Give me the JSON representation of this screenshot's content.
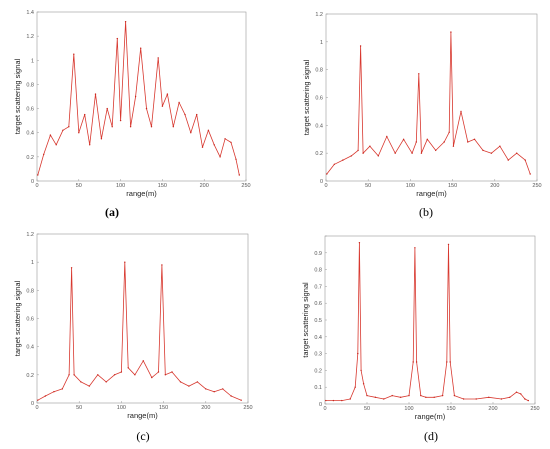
{
  "chart_data": [
    {
      "type": "line",
      "panel": "(a)",
      "xlabel": "range(m)",
      "ylabel": "target scattering signal",
      "xlim": [
        0,
        250
      ],
      "ylim": [
        0,
        1.4
      ],
      "xticks": [
        0,
        50,
        100,
        150,
        200,
        250
      ],
      "yticks": [
        0,
        0.2,
        0.4,
        0.6,
        0.8,
        1,
        1.2,
        1.4
      ],
      "ytick_labels": [
        "0",
        "0.2",
        "0.4",
        "0.6",
        "0.8",
        "1",
        "1.2",
        "1.4"
      ],
      "series": [
        {
          "x": [
            1,
            8,
            16,
            23,
            31,
            38,
            44,
            50,
            57,
            63,
            70,
            77,
            84,
            90,
            96,
            100,
            106,
            112,
            118,
            124,
            131,
            137,
            145,
            150,
            156,
            163,
            170,
            177,
            184,
            191,
            198,
            205,
            212,
            219,
            225,
            232,
            238,
            242
          ],
          "y": [
            0.05,
            0.22,
            0.38,
            0.3,
            0.42,
            0.45,
            1.05,
            0.4,
            0.55,
            0.3,
            0.72,
            0.35,
            0.6,
            0.45,
            1.18,
            0.5,
            1.32,
            0.45,
            0.7,
            1.1,
            0.6,
            0.45,
            1.02,
            0.62,
            0.72,
            0.45,
            0.65,
            0.55,
            0.4,
            0.55,
            0.28,
            0.42,
            0.3,
            0.2,
            0.35,
            0.32,
            0.18,
            0.05
          ]
        }
      ]
    },
    {
      "type": "line",
      "panel": "(b)",
      "xlabel": "range(m)",
      "ylabel": "target scattering signal",
      "xlim": [
        0,
        250
      ],
      "ylim": [
        0,
        1.2
      ],
      "xticks": [
        0,
        50,
        100,
        150,
        200,
        250
      ],
      "yticks": [
        0,
        0.2,
        0.4,
        0.6,
        0.8,
        1,
        1.2
      ],
      "ytick_labels": [
        "0",
        "0.2",
        "0.4",
        "0.6",
        "0.8",
        "1",
        "1.2"
      ],
      "series": [
        {
          "x": [
            1,
            10,
            20,
            30,
            38,
            41,
            44,
            52,
            62,
            72,
            82,
            92,
            102,
            107,
            110,
            113,
            120,
            130,
            140,
            146,
            148,
            151,
            160,
            168,
            176,
            186,
            196,
            206,
            216,
            226,
            236,
            242
          ],
          "y": [
            0.05,
            0.12,
            0.15,
            0.18,
            0.22,
            0.97,
            0.2,
            0.25,
            0.18,
            0.32,
            0.2,
            0.3,
            0.2,
            0.28,
            0.77,
            0.2,
            0.3,
            0.22,
            0.28,
            0.35,
            1.07,
            0.25,
            0.5,
            0.28,
            0.3,
            0.22,
            0.2,
            0.25,
            0.15,
            0.2,
            0.15,
            0.05
          ]
        }
      ]
    },
    {
      "type": "line",
      "panel": "(c)",
      "xlabel": "range(m)",
      "ylabel": "target scattering signal",
      "xlim": [
        0,
        250
      ],
      "ylim": [
        0,
        1.2
      ],
      "xticks": [
        0,
        50,
        100,
        150,
        200,
        250
      ],
      "yticks": [
        0,
        0.2,
        0.4,
        0.6,
        0.8,
        1,
        1.2
      ],
      "ytick_labels": [
        "0",
        "0.2",
        "0.4",
        "0.6",
        "0.8",
        "1",
        "1.2"
      ],
      "series": [
        {
          "x": [
            1,
            10,
            20,
            30,
            38,
            41,
            44,
            52,
            62,
            72,
            82,
            92,
            100,
            104,
            108,
            116,
            126,
            136,
            144,
            148,
            152,
            160,
            170,
            180,
            190,
            200,
            210,
            220,
            230,
            242
          ],
          "y": [
            0.02,
            0.05,
            0.08,
            0.1,
            0.2,
            0.96,
            0.2,
            0.15,
            0.12,
            0.2,
            0.15,
            0.2,
            0.22,
            1.0,
            0.25,
            0.2,
            0.3,
            0.18,
            0.22,
            0.98,
            0.2,
            0.22,
            0.15,
            0.12,
            0.15,
            0.1,
            0.08,
            0.1,
            0.05,
            0.02
          ]
        }
      ]
    },
    {
      "type": "line",
      "panel": "(d)",
      "xlabel": "range(m)",
      "ylabel": "target scattering signal",
      "xlim": [
        0,
        250
      ],
      "ylim": [
        0,
        1
      ],
      "xticks": [
        0,
        50,
        100,
        150,
        200,
        250
      ],
      "yticks": [
        0,
        0.1,
        0.2,
        0.3,
        0.4,
        0.5,
        0.6,
        0.7,
        0.8,
        0.9,
        1
      ],
      "ytick_labels": [
        "0",
        "0.1",
        "0.2",
        "0.3",
        "0.4",
        "0.5",
        "0.6",
        "0.7",
        "0.8",
        "0.9",
        ""
      ],
      "series": [
        {
          "x": [
            1,
            10,
            20,
            30,
            36,
            39,
            41,
            43,
            46,
            50,
            60,
            70,
            80,
            90,
            100,
            105,
            107,
            109,
            114,
            120,
            130,
            140,
            145,
            147,
            149,
            154,
            165,
            180,
            195,
            210,
            220,
            228,
            233,
            238,
            242
          ],
          "y": [
            0.02,
            0.02,
            0.02,
            0.03,
            0.1,
            0.3,
            0.96,
            0.2,
            0.12,
            0.05,
            0.04,
            0.03,
            0.05,
            0.04,
            0.05,
            0.25,
            0.93,
            0.25,
            0.05,
            0.04,
            0.04,
            0.05,
            0.25,
            0.95,
            0.25,
            0.05,
            0.03,
            0.03,
            0.04,
            0.03,
            0.04,
            0.07,
            0.06,
            0.03,
            0.02
          ]
        }
      ]
    }
  ]
}
